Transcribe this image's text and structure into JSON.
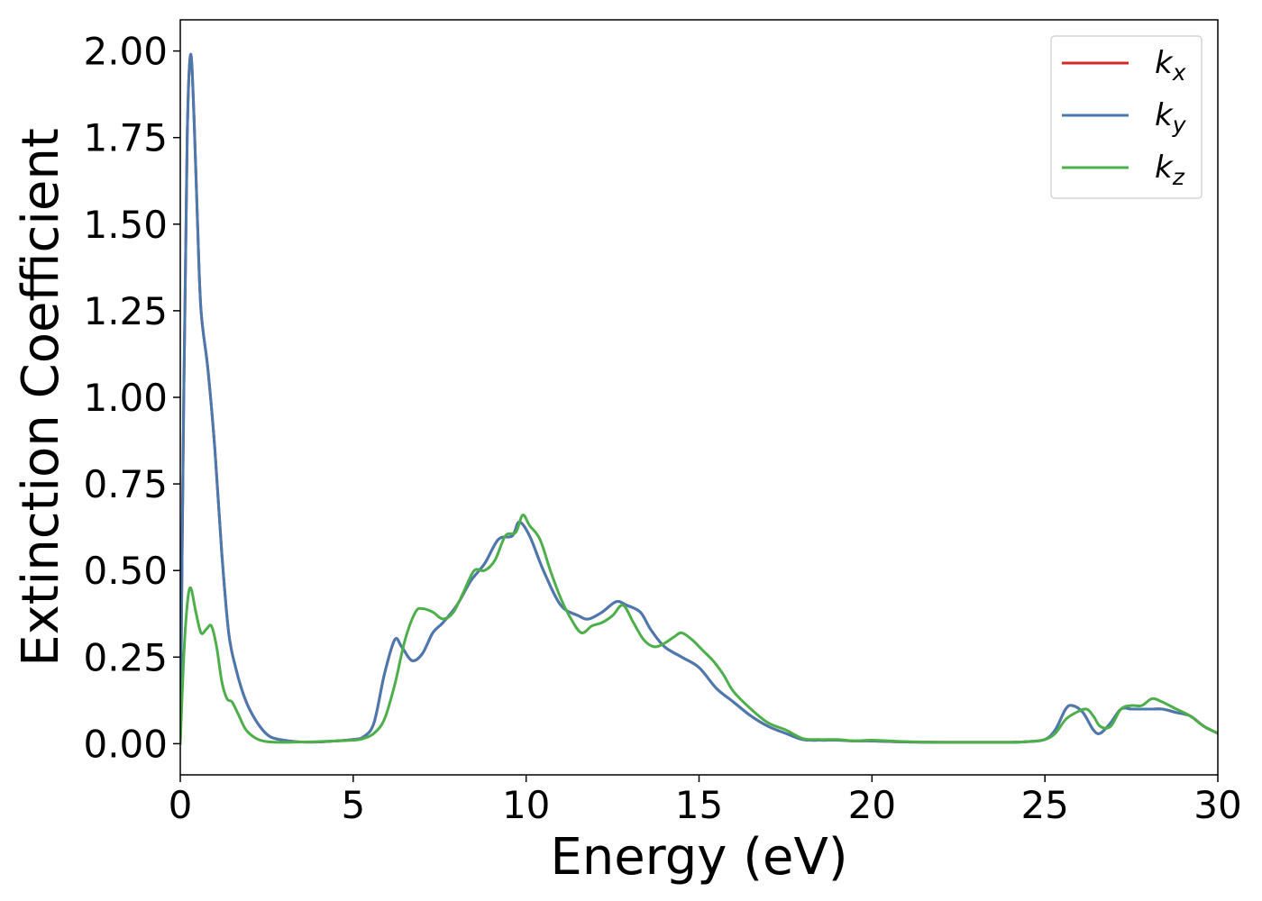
{
  "chart_data": {
    "type": "line",
    "title": "",
    "xlabel": "Energy (eV)",
    "ylabel": "Extinction Coefficient",
    "xlim": [
      0,
      30
    ],
    "ylim": [
      -0.09,
      2.09
    ],
    "xticks": [
      0,
      5,
      10,
      15,
      20,
      25,
      30
    ],
    "xtick_labels": [
      "0",
      "5",
      "10",
      "15",
      "20",
      "25",
      "30"
    ],
    "yticks": [
      0,
      0.25,
      0.5,
      0.75,
      1.0,
      1.25,
      1.5,
      1.75,
      2.0
    ],
    "ytick_labels": [
      "0.00",
      "0.25",
      "0.50",
      "0.75",
      "1.00",
      "1.25",
      "1.50",
      "1.75",
      "2.00"
    ],
    "grid": false,
    "legend": {
      "position": "top-right",
      "entries": [
        {
          "base": "k",
          "sub": "x",
          "color": "#d62728"
        },
        {
          "base": "k",
          "sub": "y",
          "color": "#4a79b0"
        },
        {
          "base": "k",
          "sub": "z",
          "color": "#4daf4a"
        }
      ]
    },
    "series": [
      {
        "name": "kx",
        "color": "#d62728",
        "x": [
          0,
          0.1,
          0.2,
          0.3,
          0.4,
          0.5,
          0.6,
          0.8,
          1.0,
          1.2,
          1.4,
          1.6,
          1.8,
          2.0,
          2.3,
          2.6,
          3.0,
          3.5,
          4.0,
          4.5,
          5.0,
          5.3,
          5.6,
          5.9,
          6.2,
          6.4,
          6.7,
          7.0,
          7.3,
          7.6,
          8.0,
          8.4,
          8.8,
          9.2,
          9.6,
          9.8,
          10.1,
          10.5,
          11.0,
          11.5,
          11.8,
          12.2,
          12.6,
          12.9,
          13.3,
          13.6,
          14.0,
          14.5,
          15.0,
          15.5,
          16.0,
          16.5,
          17.0,
          17.5,
          18.0,
          18.5,
          19.0,
          19.5,
          20.0,
          21.0,
          22.0,
          23.0,
          24.0,
          24.5,
          25.0,
          25.3,
          25.6,
          25.8,
          26.1,
          26.4,
          26.6,
          26.9,
          27.2,
          27.5,
          27.8,
          28.1,
          28.4,
          28.8,
          29.2,
          29.6,
          30.0
        ],
        "y": [
          0,
          1.0,
          1.75,
          1.99,
          1.8,
          1.5,
          1.25,
          1.08,
          0.85,
          0.55,
          0.32,
          0.22,
          0.15,
          0.1,
          0.05,
          0.02,
          0.01,
          0.005,
          0.005,
          0.008,
          0.012,
          0.02,
          0.06,
          0.2,
          0.3,
          0.28,
          0.24,
          0.26,
          0.32,
          0.35,
          0.4,
          0.47,
          0.52,
          0.59,
          0.6,
          0.64,
          0.6,
          0.5,
          0.4,
          0.37,
          0.36,
          0.38,
          0.41,
          0.4,
          0.38,
          0.33,
          0.28,
          0.25,
          0.22,
          0.16,
          0.12,
          0.08,
          0.05,
          0.03,
          0.012,
          0.01,
          0.01,
          0.008,
          0.008,
          0.005,
          0.004,
          0.004,
          0.004,
          0.006,
          0.012,
          0.04,
          0.1,
          0.11,
          0.09,
          0.04,
          0.03,
          0.06,
          0.1,
          0.1,
          0.1,
          0.1,
          0.1,
          0.09,
          0.08,
          0.05,
          0.03
        ]
      },
      {
        "name": "ky",
        "color": "#4a79b0",
        "x": [
          0,
          0.1,
          0.2,
          0.3,
          0.4,
          0.5,
          0.6,
          0.8,
          1.0,
          1.2,
          1.4,
          1.6,
          1.8,
          2.0,
          2.3,
          2.6,
          3.0,
          3.5,
          4.0,
          4.5,
          5.0,
          5.3,
          5.6,
          5.9,
          6.2,
          6.4,
          6.7,
          7.0,
          7.3,
          7.6,
          8.0,
          8.4,
          8.8,
          9.2,
          9.6,
          9.8,
          10.1,
          10.5,
          11.0,
          11.5,
          11.8,
          12.2,
          12.6,
          12.9,
          13.3,
          13.6,
          14.0,
          14.5,
          15.0,
          15.5,
          16.0,
          16.5,
          17.0,
          17.5,
          18.0,
          18.5,
          19.0,
          19.5,
          20.0,
          21.0,
          22.0,
          23.0,
          24.0,
          24.5,
          25.0,
          25.3,
          25.6,
          25.8,
          26.1,
          26.4,
          26.6,
          26.9,
          27.2,
          27.5,
          27.8,
          28.1,
          28.4,
          28.8,
          29.2,
          29.6,
          30.0
        ],
        "y": [
          0,
          1.0,
          1.75,
          1.99,
          1.8,
          1.5,
          1.25,
          1.08,
          0.85,
          0.55,
          0.32,
          0.22,
          0.15,
          0.1,
          0.05,
          0.02,
          0.01,
          0.005,
          0.005,
          0.008,
          0.012,
          0.02,
          0.06,
          0.2,
          0.3,
          0.28,
          0.24,
          0.26,
          0.32,
          0.35,
          0.4,
          0.47,
          0.52,
          0.59,
          0.6,
          0.64,
          0.6,
          0.5,
          0.4,
          0.37,
          0.36,
          0.38,
          0.41,
          0.4,
          0.38,
          0.33,
          0.28,
          0.25,
          0.22,
          0.16,
          0.12,
          0.08,
          0.05,
          0.03,
          0.012,
          0.01,
          0.01,
          0.008,
          0.008,
          0.005,
          0.004,
          0.004,
          0.004,
          0.006,
          0.012,
          0.04,
          0.1,
          0.11,
          0.09,
          0.04,
          0.03,
          0.06,
          0.1,
          0.1,
          0.1,
          0.1,
          0.1,
          0.09,
          0.08,
          0.05,
          0.03
        ]
      },
      {
        "name": "kz",
        "color": "#4daf4a",
        "x": [
          0,
          0.1,
          0.2,
          0.3,
          0.45,
          0.6,
          0.75,
          0.9,
          1.05,
          1.2,
          1.35,
          1.5,
          1.7,
          1.9,
          2.2,
          2.5,
          3.0,
          3.5,
          4.0,
          4.5,
          5.0,
          5.3,
          5.6,
          5.9,
          6.2,
          6.5,
          6.8,
          7.0,
          7.3,
          7.6,
          7.9,
          8.2,
          8.5,
          8.8,
          9.1,
          9.4,
          9.7,
          9.9,
          10.1,
          10.4,
          10.7,
          11.0,
          11.3,
          11.6,
          11.9,
          12.2,
          12.5,
          12.8,
          13.1,
          13.4,
          13.7,
          14.0,
          14.3,
          14.5,
          14.8,
          15.1,
          15.4,
          15.7,
          16.0,
          16.5,
          17.0,
          17.5,
          18.0,
          18.5,
          19.0,
          19.5,
          20.0,
          21.0,
          22.0,
          23.0,
          24.0,
          24.5,
          25.0,
          25.3,
          25.6,
          25.9,
          26.2,
          26.4,
          26.6,
          26.9,
          27.2,
          27.5,
          27.8,
          28.1,
          28.4,
          28.8,
          29.2,
          29.6,
          30.0
        ],
        "y": [
          0,
          0.25,
          0.4,
          0.45,
          0.38,
          0.32,
          0.33,
          0.34,
          0.28,
          0.18,
          0.13,
          0.12,
          0.08,
          0.04,
          0.015,
          0.006,
          0.004,
          0.005,
          0.006,
          0.008,
          0.01,
          0.015,
          0.03,
          0.07,
          0.17,
          0.3,
          0.38,
          0.39,
          0.38,
          0.36,
          0.38,
          0.44,
          0.5,
          0.5,
          0.53,
          0.6,
          0.61,
          0.66,
          0.63,
          0.59,
          0.5,
          0.42,
          0.36,
          0.32,
          0.34,
          0.35,
          0.37,
          0.4,
          0.35,
          0.3,
          0.28,
          0.29,
          0.31,
          0.32,
          0.3,
          0.27,
          0.24,
          0.2,
          0.15,
          0.1,
          0.06,
          0.04,
          0.015,
          0.012,
          0.012,
          0.008,
          0.01,
          0.006,
          0.004,
          0.004,
          0.004,
          0.006,
          0.012,
          0.03,
          0.07,
          0.09,
          0.1,
          0.08,
          0.05,
          0.05,
          0.1,
          0.11,
          0.11,
          0.13,
          0.12,
          0.1,
          0.08,
          0.05,
          0.03
        ]
      }
    ]
  }
}
